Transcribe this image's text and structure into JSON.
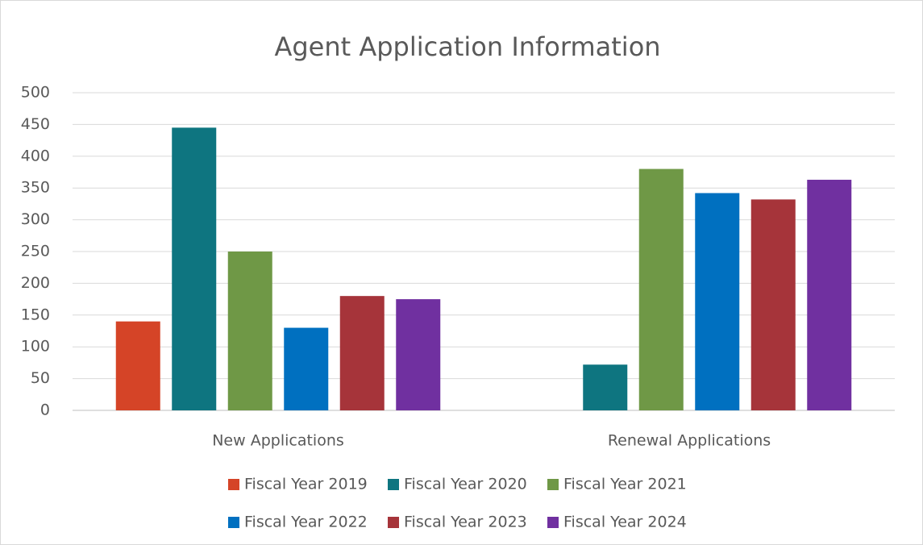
{
  "chart_data": {
    "type": "bar",
    "title": "Agent Application Information",
    "categories": [
      "New Applications",
      "Renewal Applications"
    ],
    "series": [
      {
        "name": "Fiscal Year 2019",
        "color": "#d54427",
        "values": [
          140,
          null
        ]
      },
      {
        "name": "Fiscal Year 2020",
        "color": "#0e7580",
        "values": [
          445,
          72
        ]
      },
      {
        "name": "Fiscal Year 2021",
        "color": "#6f9846",
        "values": [
          250,
          380
        ]
      },
      {
        "name": "Fiscal Year 2022",
        "color": "#0070c0",
        "values": [
          130,
          342
        ]
      },
      {
        "name": "Fiscal Year 2023",
        "color": "#a6343a",
        "values": [
          180,
          332
        ]
      },
      {
        "name": "Fiscal Year 2024",
        "color": "#7030a0",
        "values": [
          175,
          363
        ]
      }
    ],
    "ylim": [
      0,
      500
    ],
    "yticks": [
      0,
      50,
      100,
      150,
      200,
      250,
      300,
      350,
      400,
      450,
      500
    ],
    "grid": true,
    "legend": "bottom"
  }
}
